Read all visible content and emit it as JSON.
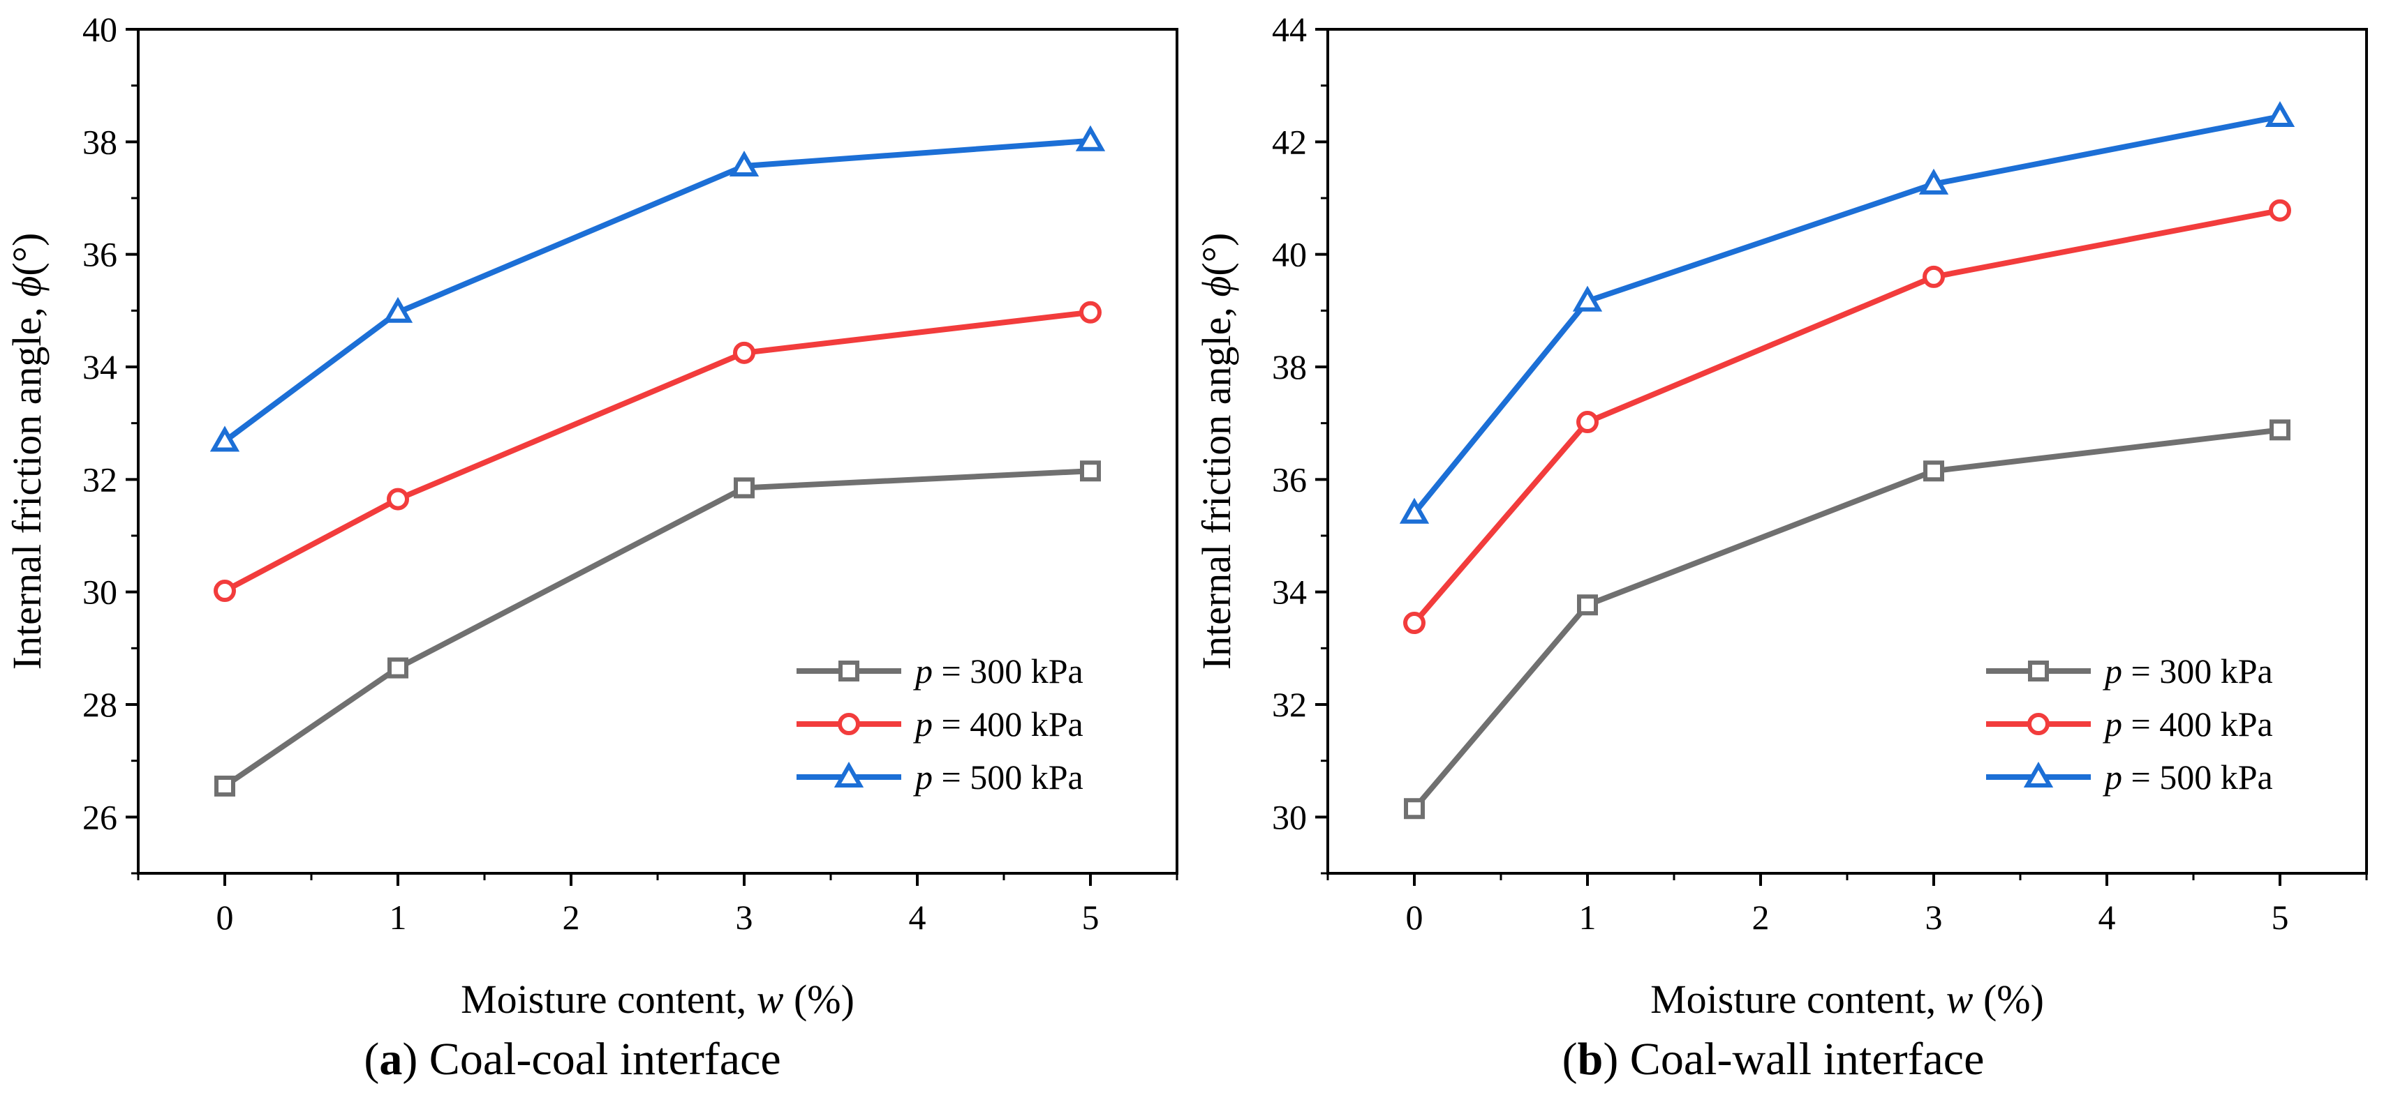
{
  "chart_data": [
    {
      "id": "a",
      "type": "line",
      "caption_letter": "a",
      "caption_text": "Coal-coal interface",
      "xlabel": "Moisture content, ",
      "xlabel_var": "w",
      "xlabel_unit": " (%)",
      "ylabel": "Internal friction angle, ",
      "ylabel_var": "ϕ",
      "ylabel_unit": "(°)",
      "xlim": [
        -0.5,
        5.5
      ],
      "ylim": [
        25,
        40
      ],
      "xticks": [
        0,
        1,
        2,
        3,
        4,
        5
      ],
      "yticks": [
        26,
        28,
        30,
        32,
        34,
        36,
        38,
        40
      ],
      "legend_position": "lower-right",
      "series": [
        {
          "name": "p = 300 kPa",
          "var": "p",
          "label": " = 300 kPa",
          "color": "#707070",
          "marker": "square",
          "x": [
            0,
            1,
            3,
            5
          ],
          "y": [
            26.55,
            28.65,
            31.85,
            32.15
          ]
        },
        {
          "name": "p = 400 kPa",
          "var": "p",
          "label": " = 400 kPa",
          "color": "#f23c3c",
          "marker": "circle",
          "x": [
            0,
            1,
            3,
            5
          ],
          "y": [
            30.02,
            31.65,
            34.25,
            34.97
          ]
        },
        {
          "name": "p = 500 kPa",
          "var": "p",
          "label": " = 500 kPa",
          "color": "#1c6fd6",
          "marker": "triangle",
          "x": [
            0,
            1,
            3,
            5
          ],
          "y": [
            32.68,
            34.97,
            37.57,
            38.02
          ]
        }
      ]
    },
    {
      "id": "b",
      "type": "line",
      "caption_letter": "b",
      "caption_text": "Coal-wall interface",
      "xlabel": "Moisture content, ",
      "xlabel_var": "w",
      "xlabel_unit": " (%)",
      "ylabel": "Internal friction angle, ",
      "ylabel_var": "ϕ",
      "ylabel_unit": "(°)",
      "xlim": [
        -0.5,
        5.5
      ],
      "ylim": [
        29,
        44
      ],
      "xticks": [
        0,
        1,
        2,
        3,
        4,
        5
      ],
      "yticks": [
        30,
        32,
        34,
        36,
        38,
        40,
        42,
        44
      ],
      "legend_position": "lower-right",
      "series": [
        {
          "name": "p = 300 kPa",
          "var": "p",
          "label": " = 300 kPa",
          "color": "#707070",
          "marker": "square",
          "x": [
            0,
            1,
            3,
            5
          ],
          "y": [
            30.15,
            33.77,
            36.15,
            36.88
          ]
        },
        {
          "name": "p = 400 kPa",
          "var": "p",
          "label": " = 400 kPa",
          "color": "#f23c3c",
          "marker": "circle",
          "x": [
            0,
            1,
            3,
            5
          ],
          "y": [
            33.45,
            37.02,
            39.6,
            40.78
          ]
        },
        {
          "name": "p = 500 kPa",
          "var": "p",
          "label": " = 500 kPa",
          "color": "#1c6fd6",
          "marker": "triangle",
          "x": [
            0,
            1,
            3,
            5
          ],
          "y": [
            35.4,
            39.17,
            41.25,
            42.45
          ]
        }
      ]
    }
  ]
}
